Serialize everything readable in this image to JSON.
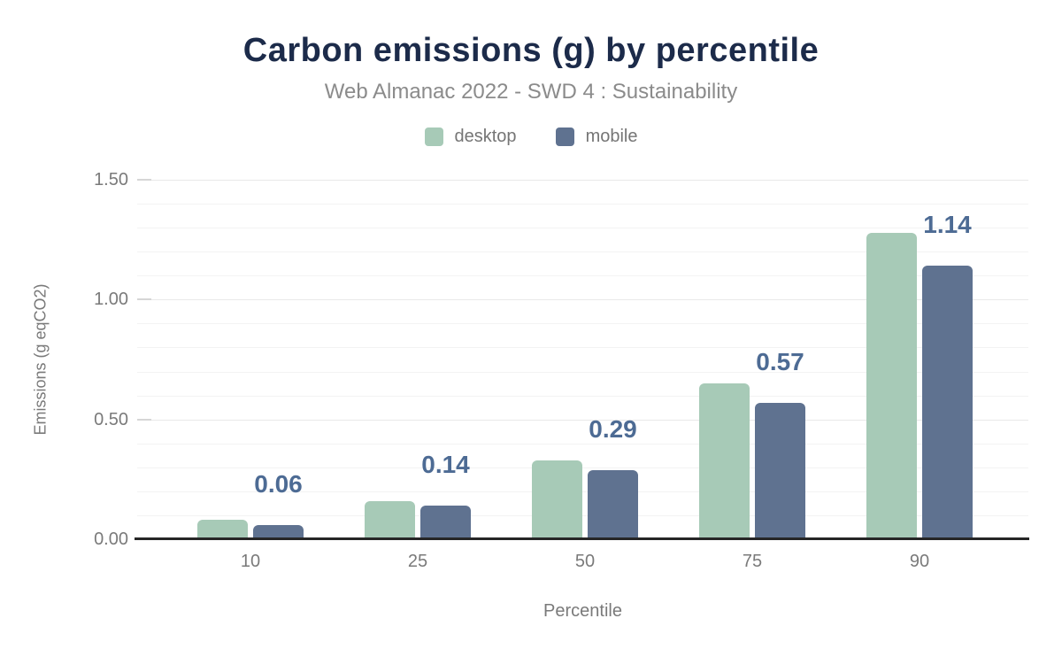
{
  "chart_data": {
    "type": "bar",
    "title": "Carbon emissions (g) by percentile",
    "subtitle": "Web Almanac 2022 - SWD 4 : Sustainability",
    "xlabel": "Percentile",
    "ylabel": "Emissions (g eqCO2)",
    "categories": [
      "10",
      "25",
      "50",
      "75",
      "90"
    ],
    "series": [
      {
        "name": "desktop",
        "color": "#a7cab7",
        "values": [
          0.08,
          0.16,
          0.33,
          0.65,
          1.28
        ],
        "value_labels": []
      },
      {
        "name": "mobile",
        "color": "#5f7290",
        "values": [
          0.06,
          0.14,
          0.29,
          0.57,
          1.14
        ],
        "value_labels": [
          "0.06",
          "0.14",
          "0.29",
          "0.57",
          "1.14"
        ]
      }
    ],
    "ylim": [
      0,
      1.5
    ],
    "yticks": [
      {
        "value": 0.0,
        "label": "0.00"
      },
      {
        "value": 0.5,
        "label": "0.50"
      },
      {
        "value": 1.0,
        "label": "1.00"
      },
      {
        "value": 1.5,
        "label": "1.50"
      }
    ],
    "minor_grid_step": 0.1,
    "grid": "horizontal",
    "legend_position": "top"
  },
  "colors": {
    "background": "#ffffff",
    "title": "#1c2b4a",
    "subtitle": "#8b8b8b",
    "axis_text": "#7a7a7a",
    "legend_text": "#757575",
    "value_label": "#4d6b94",
    "desktop_bar": "#a7cab7",
    "mobile_bar": "#5f7290",
    "axis_line": "#262626",
    "grid_minor": "#f3f3f3",
    "grid_major": "#e9e9e9"
  }
}
